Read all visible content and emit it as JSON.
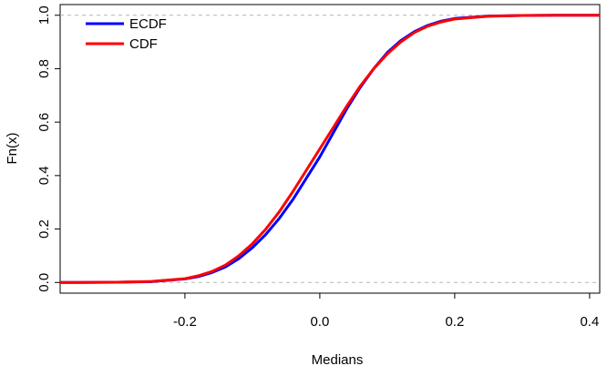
{
  "chart_data": {
    "type": "line",
    "title": "",
    "xlabel": "Medians",
    "ylabel": "Fn(x)",
    "xlim": [
      -0.385,
      0.415
    ],
    "ylim": [
      -0.04,
      1.04
    ],
    "x_ticks": [
      -0.2,
      0.0,
      0.2,
      0.4
    ],
    "x_tick_labels": [
      "-0.2",
      "0.0",
      "0.2",
      "0.4"
    ],
    "y_ticks": [
      0.0,
      0.2,
      0.4,
      0.6,
      0.8,
      1.0
    ],
    "y_tick_labels": [
      "0.0",
      "0.2",
      "0.4",
      "0.6",
      "0.8",
      "1.0"
    ],
    "reference_lines": [
      0.0,
      1.0
    ],
    "legend": {
      "position": "top-left",
      "entries": [
        "ECDF",
        "CDF"
      ]
    },
    "series": [
      {
        "name": "ECDF",
        "color": "#0000ff",
        "x": [
          -0.385,
          -0.36,
          -0.3,
          -0.25,
          -0.2,
          -0.18,
          -0.16,
          -0.14,
          -0.12,
          -0.1,
          -0.08,
          -0.06,
          -0.04,
          -0.02,
          0.0,
          0.02,
          0.04,
          0.06,
          0.08,
          0.1,
          0.12,
          0.14,
          0.16,
          0.18,
          0.2,
          0.25,
          0.3,
          0.35,
          0.4,
          0.415
        ],
        "y": [
          0.0,
          0.0,
          0.001,
          0.003,
          0.013,
          0.022,
          0.037,
          0.058,
          0.089,
          0.13,
          0.18,
          0.24,
          0.31,
          0.39,
          0.47,
          0.56,
          0.65,
          0.73,
          0.8,
          0.86,
          0.905,
          0.938,
          0.962,
          0.978,
          0.988,
          0.997,
          0.999,
          1.0,
          1.0,
          1.0
        ]
      },
      {
        "name": "CDF",
        "color": "#ff0000",
        "x": [
          -0.385,
          -0.36,
          -0.3,
          -0.25,
          -0.2,
          -0.18,
          -0.16,
          -0.14,
          -0.12,
          -0.1,
          -0.08,
          -0.06,
          -0.04,
          -0.02,
          0.0,
          0.02,
          0.04,
          0.06,
          0.08,
          0.1,
          0.12,
          0.14,
          0.16,
          0.18,
          0.2,
          0.25,
          0.3,
          0.35,
          0.4,
          0.415
        ],
        "y": [
          0.0,
          0.0,
          0.001,
          0.004,
          0.014,
          0.025,
          0.041,
          0.065,
          0.1,
          0.145,
          0.2,
          0.265,
          0.34,
          0.42,
          0.5,
          0.58,
          0.66,
          0.735,
          0.8,
          0.855,
          0.9,
          0.935,
          0.959,
          0.975,
          0.986,
          0.996,
          0.999,
          1.0,
          1.0,
          1.0
        ]
      }
    ]
  }
}
